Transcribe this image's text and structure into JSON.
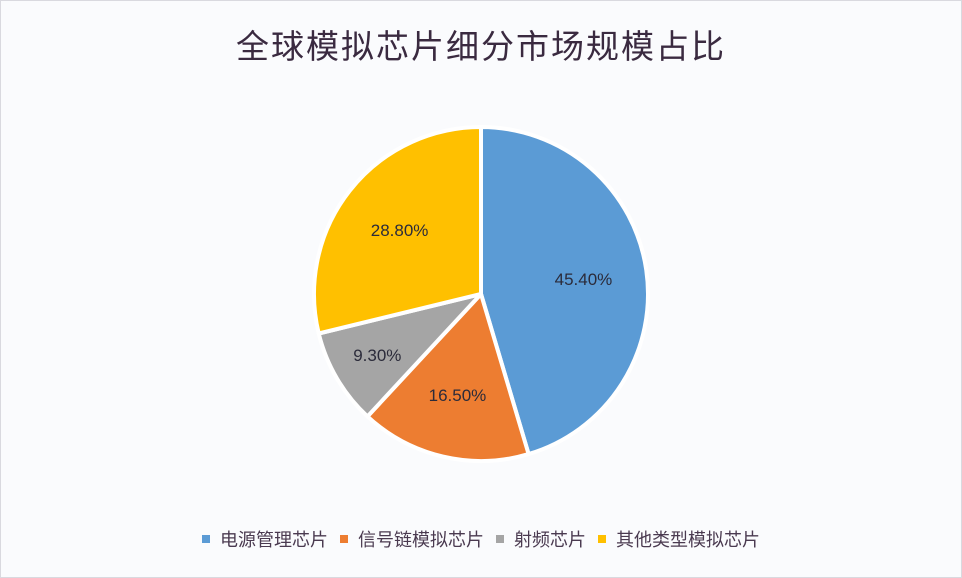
{
  "chart_data": {
    "type": "pie",
    "title": "全球模拟芯片细分市场规模占比",
    "categories": [
      "电源管理芯片",
      "信号链模拟芯片",
      "射频芯片",
      "其他类型模拟芯片"
    ],
    "values": [
      45.4,
      16.5,
      9.3,
      28.8
    ],
    "labels": [
      "45.40%",
      "16.50%",
      "9.30%",
      "28.80%"
    ],
    "colors": [
      "#5b9bd5",
      "#ed7d31",
      "#a5a5a5",
      "#ffc000"
    ],
    "start_angle": "12 o'clock, clockwise",
    "legend_position": "bottom",
    "units": "%"
  },
  "title": "全球模拟芯片细分市场规模占比",
  "legend": [
    {
      "label": "电源管理芯片",
      "color": "#5b9bd5"
    },
    {
      "label": "信号链模拟芯片",
      "color": "#ed7d31"
    },
    {
      "label": "射频芯片",
      "color": "#a5a5a5"
    },
    {
      "label": "其他类型模拟芯片",
      "color": "#ffc000"
    }
  ]
}
